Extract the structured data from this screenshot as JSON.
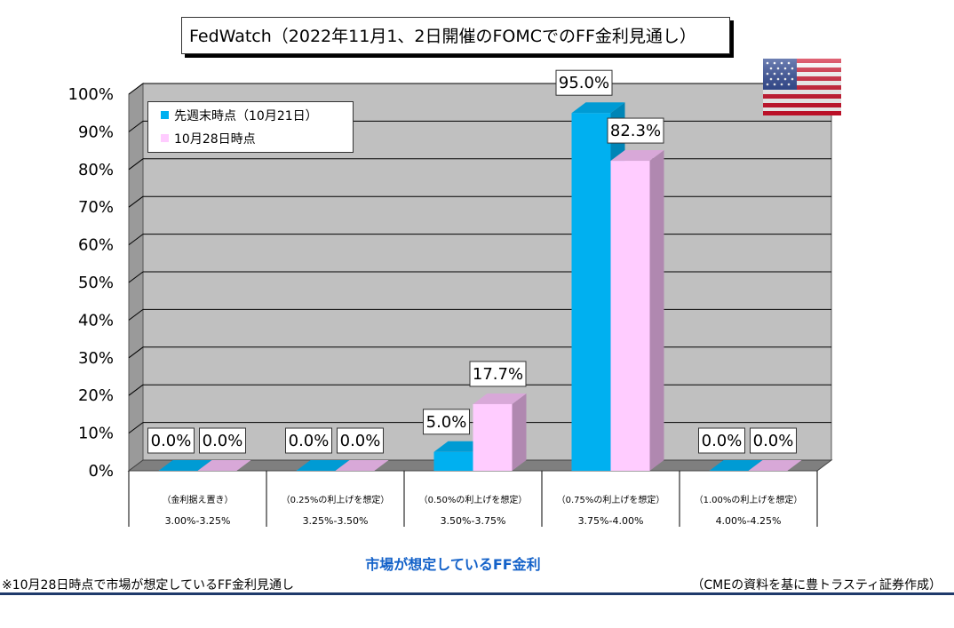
{
  "title": "FedWatch（2022年11月1、2日開催のFOMCでのFF金利見通し）",
  "chart_data": {
    "type": "bar",
    "title": "FedWatch（2022年11月1、2日開催のFOMCでのFF金利見通し）",
    "xlabel": "市場が想定しているFF金利",
    "ylabel": "",
    "ylim": [
      0,
      100
    ],
    "yticks": [
      "0%",
      "10%",
      "20%",
      "30%",
      "40%",
      "50%",
      "60%",
      "70%",
      "80%",
      "90%",
      "100%"
    ],
    "categories": [
      {
        "line1": "（金利据え置き）",
        "line2": "3.00%-3.25%"
      },
      {
        "line1": "（0.25%の利上げを想定）",
        "line2": "3.25%-3.50%"
      },
      {
        "line1": "（0.50%の利上げを想定）",
        "line2": "3.50%-3.75%"
      },
      {
        "line1": "（0.75%の利上げを想定）",
        "line2": "3.75%-4.00%"
      },
      {
        "line1": "（1.00%の利上げを想定）",
        "line2": "4.00%-4.25%"
      }
    ],
    "series": [
      {
        "name": "先週末時点（10月21日）",
        "values": [
          0.0,
          0.0,
          5.0,
          95.0,
          0.0
        ],
        "labels": [
          "0.0%",
          "0.0%",
          "5.0%",
          "95.0%",
          "0.0%"
        ],
        "color": "#00b0f0"
      },
      {
        "name": "10月28日時点",
        "values": [
          0.0,
          0.0,
          17.7,
          82.3,
          0.0
        ],
        "labels": [
          "0.0%",
          "0.0%",
          "17.7%",
          "82.3%",
          "0.0%"
        ],
        "color": "#ffccff"
      }
    ],
    "grid": true,
    "legend": "top-left",
    "plot_background": "#c0c0c0"
  },
  "legend": {
    "series1": "先週末時点（10月21日）",
    "series2": "10月28日時点"
  },
  "xaxis_title": "市場が想定しているFF金利",
  "footer": {
    "note_left": "※10月28日時点で市場が想定しているFF金利見通し",
    "note_right": "（CMEの資料を基に豊トラスティ証券作成）"
  },
  "flag": {
    "icon": "us-flag-icon"
  }
}
